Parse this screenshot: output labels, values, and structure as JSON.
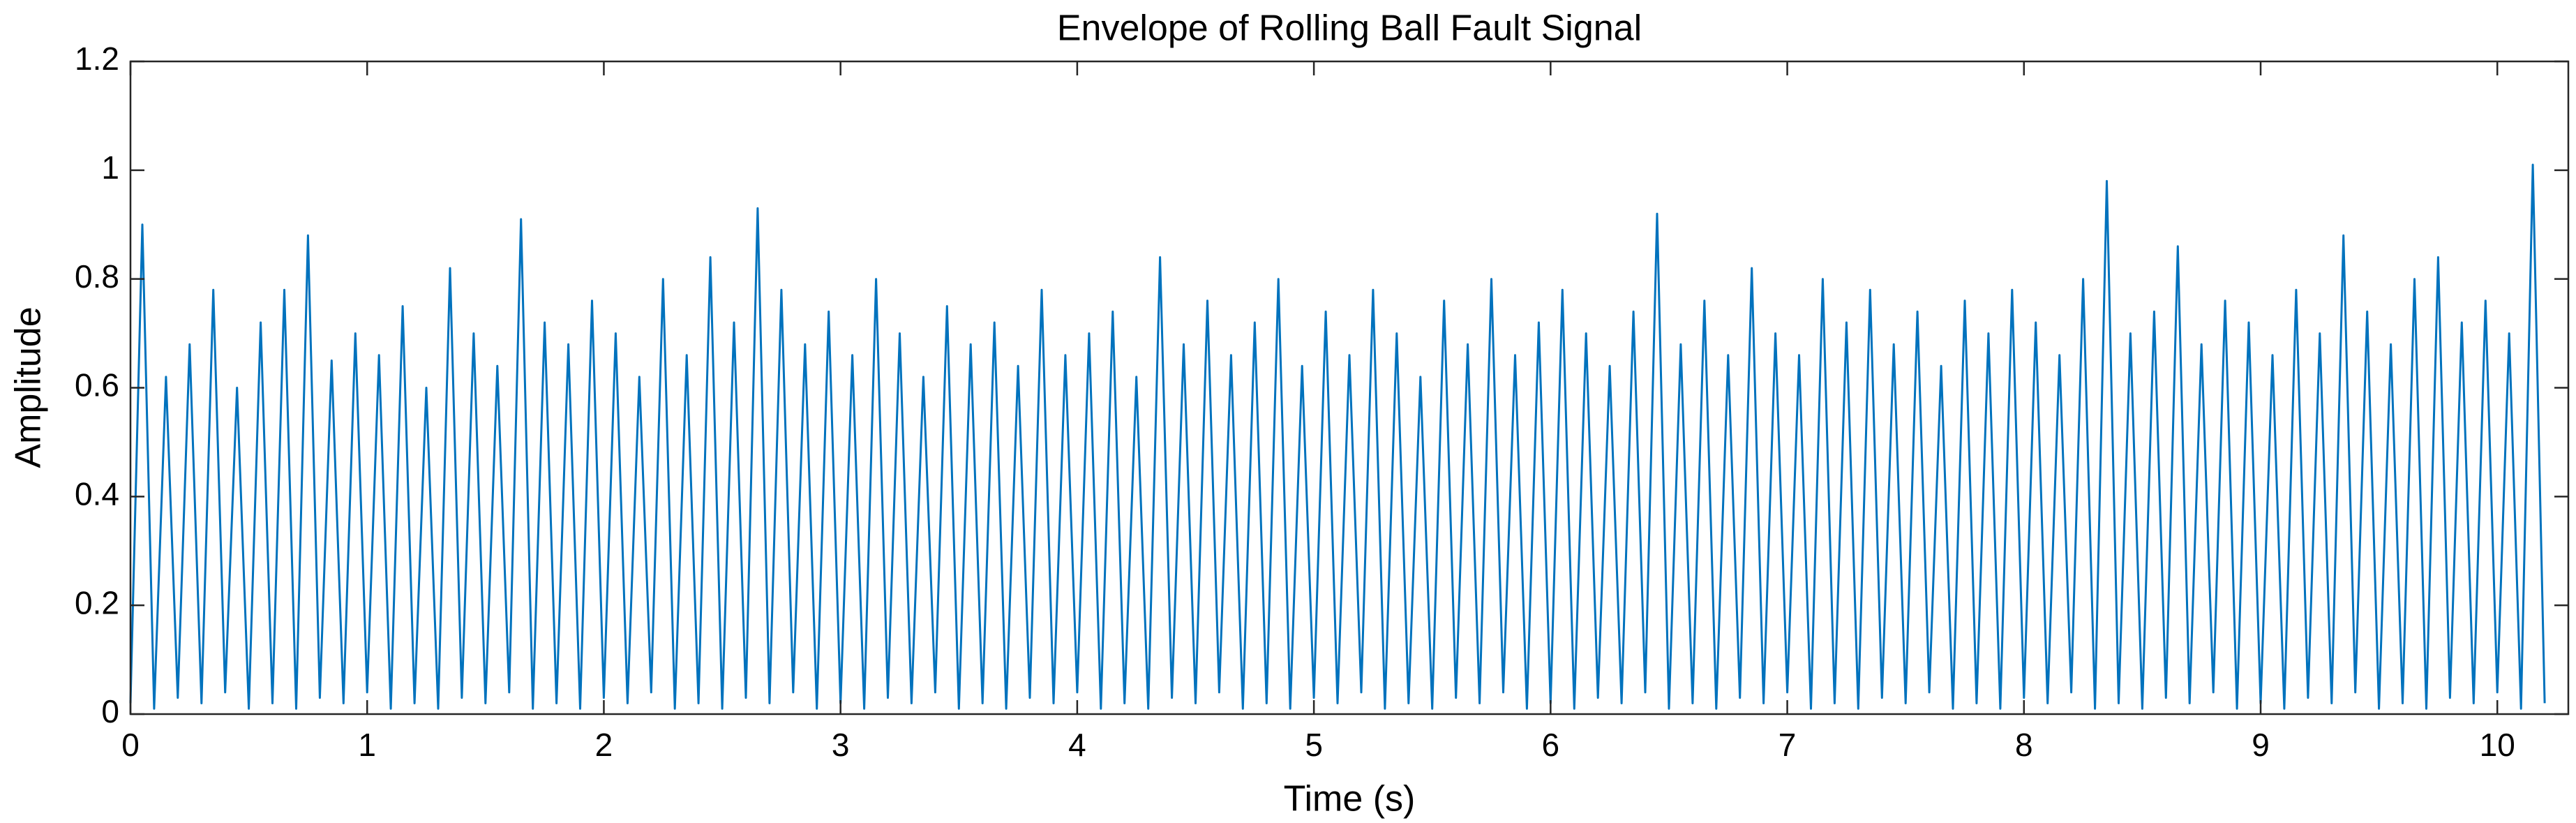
{
  "chart_data": {
    "type": "line",
    "title": "Envelope of Rolling Ball Fault Signal",
    "x_label": "Time (s)",
    "y_label": "Amplitude",
    "color": "#0072bd",
    "grid": false,
    "xlim": [
      0,
      10.3
    ],
    "xticks": [
      0,
      1,
      2,
      3,
      4,
      5,
      6,
      7,
      8,
      9,
      10
    ],
    "ylim": [
      0,
      1.2
    ],
    "yticks": [
      0,
      0.2,
      0.4,
      0.6,
      0.8,
      1,
      1.2
    ],
    "x": [
      0,
      0.05,
      0.1,
      0.15,
      0.2,
      0.25,
      0.3,
      0.35,
      0.4,
      0.45,
      0.5,
      0.55,
      0.6,
      0.65,
      0.7,
      0.75,
      0.8,
      0.85,
      0.9,
      0.95,
      1,
      1.05,
      1.1,
      1.15,
      1.2,
      1.25,
      1.3,
      1.35,
      1.4,
      1.45,
      1.5,
      1.55,
      1.6,
      1.65,
      1.7,
      1.75,
      1.8,
      1.85,
      1.9,
      1.95,
      2,
      2.05,
      2.1,
      2.15,
      2.2,
      2.25,
      2.3,
      2.35,
      2.4,
      2.45,
      2.5,
      2.55,
      2.6,
      2.65,
      2.7,
      2.75,
      2.8,
      2.85,
      2.9,
      2.95,
      3,
      3.05,
      3.1,
      3.15,
      3.2,
      3.25,
      3.3,
      3.35,
      3.4,
      3.45,
      3.5,
      3.55,
      3.6,
      3.65,
      3.7,
      3.75,
      3.8,
      3.85,
      3.9,
      3.95,
      4,
      4.05,
      4.1,
      4.15,
      4.2,
      4.25,
      4.3,
      4.35,
      4.4,
      4.45,
      4.5,
      4.55,
      4.6,
      4.65,
      4.7,
      4.75,
      4.8,
      4.85,
      4.9,
      4.95,
      5,
      5.05,
      5.1,
      5.15,
      5.2,
      5.25,
      5.3,
      5.35,
      5.4,
      5.45,
      5.5,
      5.55,
      5.6,
      5.65,
      5.7,
      5.75,
      5.8,
      5.85,
      5.9,
      5.95,
      6,
      6.05,
      6.1,
      6.15,
      6.2,
      6.25,
      6.3,
      6.35,
      6.4,
      6.45,
      6.5,
      6.55,
      6.6,
      6.65,
      6.7,
      6.75,
      6.8,
      6.85,
      6.9,
      6.95,
      7,
      7.05,
      7.1,
      7.15,
      7.2,
      7.25,
      7.3,
      7.35,
      7.4,
      7.45,
      7.5,
      7.55,
      7.6,
      7.65,
      7.7,
      7.75,
      7.8,
      7.85,
      7.9,
      7.95,
      8,
      8.05,
      8.1,
      8.15,
      8.2,
      8.25,
      8.3,
      8.35,
      8.4,
      8.45,
      8.5,
      8.55,
      8.6,
      8.65,
      8.7,
      8.75,
      8.8,
      8.85,
      8.9,
      8.95,
      9,
      9.05,
      9.1,
      9.15,
      9.2,
      9.25,
      9.3,
      9.35,
      9.4,
      9.45,
      9.5,
      9.55,
      9.6,
      9.65,
      9.7,
      9.75,
      9.8,
      9.85,
      9.9,
      9.95,
      10,
      10.05,
      10.1,
      10.15,
      10.2
    ],
    "values": [
      0.02,
      0.9,
      0.01,
      0.62,
      0.03,
      0.68,
      0.02,
      0.78,
      0.04,
      0.6,
      0.01,
      0.72,
      0.02,
      0.78,
      0.01,
      0.88,
      0.03,
      0.65,
      0.02,
      0.7,
      0.04,
      0.66,
      0.01,
      0.75,
      0.02,
      0.6,
      0.01,
      0.82,
      0.03,
      0.7,
      0.02,
      0.64,
      0.04,
      0.91,
      0.01,
      0.72,
      0.02,
      0.68,
      0.01,
      0.76,
      0.03,
      0.7,
      0.02,
      0.62,
      0.04,
      0.8,
      0.01,
      0.66,
      0.02,
      0.84,
      0.01,
      0.72,
      0.03,
      0.93,
      0.02,
      0.78,
      0.04,
      0.68,
      0.01,
      0.74,
      0.02,
      0.66,
      0.01,
      0.8,
      0.03,
      0.7,
      0.02,
      0.62,
      0.04,
      0.75,
      0.01,
      0.68,
      0.02,
      0.72,
      0.01,
      0.64,
      0.03,
      0.78,
      0.02,
      0.66,
      0.04,
      0.7,
      0.01,
      0.74,
      0.02,
      0.62,
      0.01,
      0.84,
      0.03,
      0.68,
      0.02,
      0.76,
      0.04,
      0.66,
      0.01,
      0.72,
      0.02,
      0.8,
      0.01,
      0.64,
      0.03,
      0.74,
      0.02,
      0.66,
      0.04,
      0.78,
      0.01,
      0.7,
      0.02,
      0.62,
      0.01,
      0.76,
      0.03,
      0.68,
      0.02,
      0.8,
      0.04,
      0.66,
      0.01,
      0.72,
      0.02,
      0.78,
      0.01,
      0.7,
      0.03,
      0.64,
      0.02,
      0.74,
      0.04,
      0.92,
      0.01,
      0.68,
      0.02,
      0.76,
      0.01,
      0.66,
      0.03,
      0.82,
      0.02,
      0.7,
      0.04,
      0.66,
      0.01,
      0.8,
      0.02,
      0.72,
      0.01,
      0.78,
      0.03,
      0.68,
      0.02,
      0.74,
      0.04,
      0.64,
      0.01,
      0.76,
      0.02,
      0.7,
      0.01,
      0.78,
      0.03,
      0.72,
      0.02,
      0.66,
      0.04,
      0.8,
      0.01,
      0.98,
      0.02,
      0.7,
      0.01,
      0.74,
      0.03,
      0.86,
      0.02,
      0.68,
      0.04,
      0.76,
      0.01,
      0.72,
      0.02,
      0.66,
      0.01,
      0.78,
      0.03,
      0.7,
      0.02,
      0.88,
      0.04,
      0.74,
      0.01,
      0.68,
      0.02,
      0.8,
      0.01,
      0.84,
      0.03,
      0.72,
      0.02,
      0.76,
      0.04,
      0.7,
      0.01,
      1.01,
      0.02
    ]
  }
}
